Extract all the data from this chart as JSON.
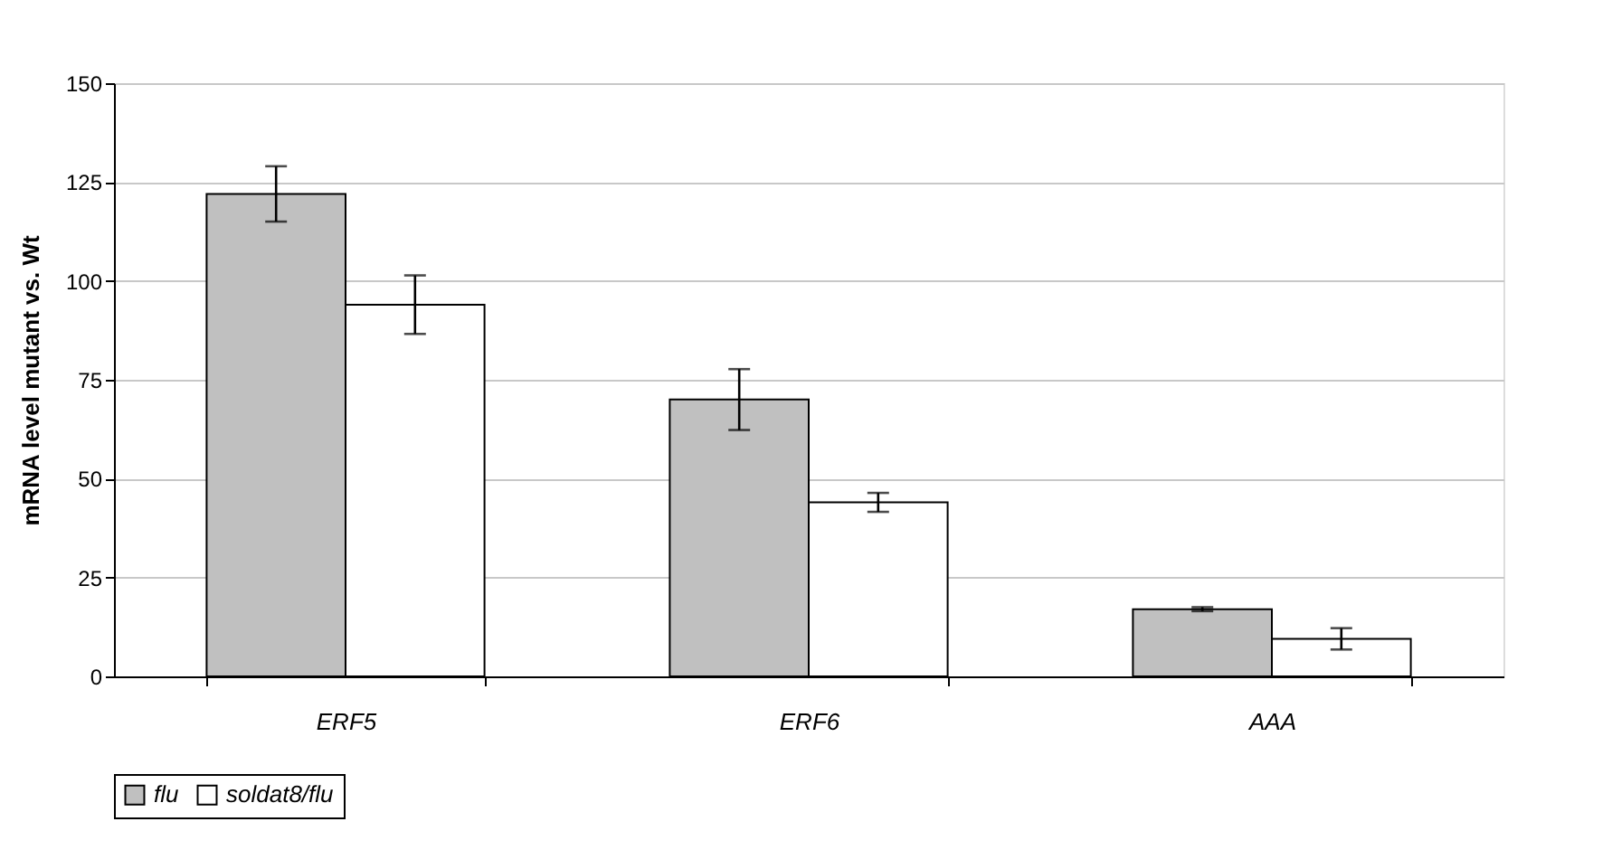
{
  "chart_data": {
    "type": "bar",
    "ylabel": "mRNA level mutant  vs. Wt",
    "categories": [
      "ERF5",
      "ERF6",
      "AAA"
    ],
    "series": [
      {
        "name": "flu",
        "color": "#c0c0c0",
        "values": [
          122,
          70,
          17
        ],
        "errors": [
          7,
          7.7,
          0.5
        ]
      },
      {
        "name": "soldat8/flu",
        "color": "#ffffff",
        "values": [
          94,
          44,
          9.5
        ],
        "errors": [
          7.4,
          2.4,
          2.7
        ]
      }
    ],
    "ylim": [
      0,
      150
    ],
    "yticks": [
      0,
      25,
      50,
      75,
      100,
      125,
      150
    ],
    "grid": "y",
    "legend": "bottom"
  }
}
